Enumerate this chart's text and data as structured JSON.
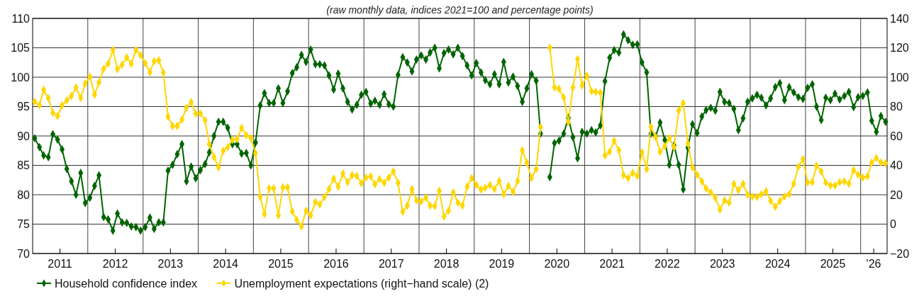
{
  "chart_data": {
    "type": "line",
    "subtitle": "(raw monthly data, indices 2021=100 and percentage points)",
    "x": [
      "2011-01-15",
      "2011-02-15",
      "2011-03-15",
      "2011-04-15",
      "2011-05-15",
      "2011-06-15",
      "2011-07-15",
      "2011-08-15",
      "2011-09-15",
      "2011-10-15",
      "2011-11-15",
      "2011-12-15",
      "2012-01-15",
      "2012-02-15",
      "2012-03-15",
      "2012-04-15",
      "2012-05-15",
      "2012-06-15",
      "2012-07-15",
      "2012-08-15",
      "2012-09-15",
      "2012-10-15",
      "2012-11-15",
      "2012-12-15",
      "2013-01-15",
      "2013-02-15",
      "2013-03-15",
      "2013-04-15",
      "2013-05-15",
      "2013-06-15",
      "2013-07-15",
      "2013-08-15",
      "2013-09-15",
      "2013-10-15",
      "2013-11-15",
      "2013-12-15",
      "2014-01-15",
      "2014-02-15",
      "2014-03-15",
      "2014-04-15",
      "2014-05-15",
      "2014-06-15",
      "2014-07-15",
      "2014-08-15",
      "2014-09-15",
      "2014-10-15",
      "2014-11-15",
      "2014-12-15",
      "2015-01-15",
      "2015-02-15",
      "2015-03-15",
      "2015-04-15",
      "2015-05-15",
      "2015-06-15",
      "2015-07-15",
      "2015-08-15",
      "2015-09-15",
      "2015-10-15",
      "2015-11-15",
      "2015-12-15",
      "2016-01-15",
      "2016-02-15",
      "2016-03-15",
      "2016-04-15",
      "2016-05-15",
      "2016-06-15",
      "2016-07-15",
      "2016-08-15",
      "2016-09-15",
      "2016-10-15",
      "2016-11-15",
      "2016-12-15",
      "2017-01-15",
      "2017-02-15",
      "2017-03-15",
      "2017-04-15",
      "2017-05-15",
      "2017-06-15",
      "2017-07-15",
      "2017-08-15",
      "2017-09-15",
      "2017-10-15",
      "2017-11-15",
      "2017-12-15",
      "2018-01-15",
      "2018-02-15",
      "2018-03-15",
      "2018-04-15",
      "2018-05-15",
      "2018-06-15",
      "2018-07-15",
      "2018-08-15",
      "2018-09-15",
      "2018-10-15",
      "2018-11-15",
      "2018-12-15",
      "2019-01-15",
      "2019-02-15",
      "2019-03-15",
      "2019-04-15",
      "2019-05-15",
      "2019-06-15",
      "2019-07-15",
      "2019-08-15",
      "2019-09-15",
      "2019-10-15",
      "2019-11-15",
      "2019-12-15",
      "2020-01-15",
      "2020-02-15",
      "2020-03-15",
      "2020-04-15",
      "2020-05-15",
      "2020-06-15",
      "2020-07-15",
      "2020-08-15",
      "2020-09-15",
      "2020-10-15",
      "2020-11-15",
      "2020-12-15",
      "2021-01-15",
      "2021-02-15",
      "2021-03-15",
      "2021-04-15",
      "2021-05-15",
      "2021-06-15",
      "2021-07-15",
      "2021-08-15",
      "2021-09-15",
      "2021-10-15",
      "2021-11-15",
      "2021-12-15",
      "2022-01-15",
      "2022-02-15",
      "2022-03-15",
      "2022-04-15",
      "2022-05-15",
      "2022-06-15",
      "2022-07-15",
      "2022-08-15",
      "2022-09-15",
      "2022-10-15",
      "2022-11-15",
      "2022-12-15",
      "2023-01-15",
      "2023-02-15",
      "2023-03-15",
      "2023-04-15",
      "2023-05-15",
      "2023-06-15",
      "2023-07-15",
      "2023-08-15",
      "2023-09-15",
      "2023-10-15",
      "2023-11-15",
      "2023-12-15",
      "2024-01-15",
      "2024-02-15",
      "2024-03-15",
      "2024-04-15",
      "2024-05-15",
      "2024-06-15",
      "2024-07-15",
      "2024-08-15",
      "2024-09-15",
      "2024-10-15",
      "2024-11-15",
      "2024-12-15",
      "2025-01-15",
      "2025-02-15",
      "2025-03-15",
      "2025-04-15",
      "2025-05-15",
      "2025-06-15",
      "2025-07-15",
      "2025-08-15",
      "2025-09-15",
      "2025-10-15",
      "2025-11-15",
      "2025-12-15",
      "2026-01-15",
      "2026-02-15",
      "2026-03-15",
      "2026-04-15",
      "2026-05-15",
      "2026-06-15"
    ],
    "series": [
      {
        "name": "Household confidence index",
        "color": "#006400",
        "values": [
          89.6,
          88.1,
          86.7,
          86.4,
          90.3,
          89.4,
          87.7,
          84.4,
          82.3,
          80.0,
          83.7,
          78.6,
          79.5,
          81.5,
          83.3,
          76.2,
          75.8,
          73.9,
          76.8,
          75.3,
          75.2,
          74.6,
          74.5,
          73.9,
          74.5,
          76.1,
          74.2,
          75.3,
          75.3,
          84.1,
          85.1,
          86.9,
          88.6,
          82.3,
          84.8,
          82.8,
          84.2,
          85.2,
          87.2,
          90.0,
          92.4,
          92.4,
          91.4,
          88.6,
          88.6,
          87.0,
          87.1,
          85.0,
          88.9,
          95.2,
          97.3,
          95.6,
          95.6,
          98.1,
          95.6,
          97.6,
          100.7,
          101.7,
          103.8,
          102.6,
          104.7,
          102.2,
          102.2,
          102.0,
          100.3,
          97.9,
          100.6,
          98.1,
          95.8,
          94.5,
          95.3,
          97.0,
          97.5,
          95.5,
          96.0,
          95.3,
          97.1,
          95.4,
          95.0,
          100.4,
          103.4,
          102.5,
          101.0,
          103.0,
          103.7,
          103.0,
          104.2,
          105.0,
          101.5,
          104.1,
          104.7,
          103.9,
          105.0,
          103.6,
          102.0,
          100.3,
          102.4,
          100.8,
          99.5,
          98.8,
          100.5,
          98.8,
          102.6,
          99.1,
          100.1,
          98.5,
          95.8,
          98.1,
          100.5,
          99.4,
          90.4,
          null,
          83.0,
          88.8,
          89.2,
          90.4,
          93.1,
          89.8,
          86.2,
          90.7,
          90.4,
          91.0,
          90.6,
          91.8,
          99.3,
          103.3,
          104.6,
          104.2,
          107.3,
          106.3,
          105.5,
          105.6,
          102.5,
          100.8,
          90.4,
          89.9,
          92.3,
          89.3,
          85.1,
          88.4,
          85.1,
          80.9,
          88.0,
          92.0,
          90.5,
          93.3,
          94.4,
          94.8,
          94.3,
          97.5,
          95.8,
          95.6,
          94.6,
          91.0,
          93.0,
          95.8,
          96.4,
          97.0,
          96.5,
          95.2,
          96.4,
          98.3,
          99.0,
          96.1,
          98.3,
          97.4,
          96.6,
          96.3,
          98.2,
          98.8,
          95.0,
          92.7,
          96.5,
          96.1,
          97.2,
          96.2,
          96.8,
          97.5,
          94.9,
          96.6,
          96.8,
          97.4,
          92.6,
          90.7,
          93.4,
          92.4
        ]
      },
      {
        "name": "Unemployment expectations (right−hand scale) (2)",
        "color": "#ffd700",
        "axis": "y2",
        "values": [
          83.4,
          80.8,
          91.4,
          85.8,
          75.8,
          73.5,
          80.8,
          84.2,
          87.3,
          93.0,
          85.9,
          95.6,
          100.3,
          88.1,
          96.4,
          105.7,
          109.3,
          118.5,
          105.4,
          108.4,
          113.5,
          109.2,
          118.5,
          115.1,
          109.5,
          103.4,
          110.9,
          111.5,
          103.1,
          73.3,
          66.8,
          66.8,
          71.1,
          79.2,
          83.1,
          75.3,
          75.3,
          70.7,
          54.3,
          45.7,
          38.7,
          49.9,
          52.4,
          57.4,
          57.9,
          65.5,
          60.5,
          58.7,
          48.1,
          18.5,
          6.8,
          24.3,
          24.3,
          6.0,
          25.0,
          25.0,
          8.7,
          2.9,
          -1.5,
          9.1,
          6.0,
          15.1,
          13.3,
          18.5,
          23.9,
          31.0,
          25.5,
          34.4,
          28.6,
          33.3,
          32.8,
          27.8,
          31.7,
          32.5,
          27.1,
          30.6,
          28.1,
          31.7,
          35.9,
          28.1,
          8.4,
          12.6,
          23.9,
          16.1,
          15.4,
          18.0,
          12.6,
          12.3,
          22.7,
          5.2,
          9.1,
          21.6,
          14.6,
          12.6,
          25.5,
          31.3,
          26.6,
          23.6,
          24.7,
          26.6,
          23.9,
          29.4,
          20.4,
          26.0,
          21.9,
          29.4,
          50.4,
          41.9,
          31.3,
          37.5,
          66.0,
          null,
          120.1,
          93.0,
          92.0,
          86.3,
          69.4,
          93.0,
          112.3,
          94.4,
          101.1,
          90.5,
          90.1,
          89.4,
          46.8,
          49.3,
          56.7,
          50.4,
          33.3,
          31.3,
          34.8,
          32.8,
          48.9,
          37.5,
          66.3,
          59.3,
          49.2,
          53.1,
          58.7,
          52.4,
          77.4,
          82.4,
          54.8,
          38.7,
          33.6,
          29.1,
          24.3,
          21.6,
          18.0,
          9.9,
          16.1,
          14.6,
          27.4,
          23.2,
          27.4,
          20.0,
          18.8,
          18.5,
          20.4,
          22.4,
          15.8,
          11.8,
          15.7,
          18.8,
          20.4,
          27.5,
          39.0,
          44.2,
          28.3,
          28.6,
          39.8,
          35.9,
          28.3,
          26.3,
          26.3,
          28.6,
          29.1,
          27.5,
          36.7,
          33.6,
          31.7,
          32.5,
          41.9,
          45.0,
          41.9,
          41.4
        ]
      }
    ],
    "xlim": [
      "2011-01-01",
      "2026-06-25"
    ],
    "xticks": [
      {
        "value": "2011-07-01",
        "label": "2011"
      },
      {
        "value": "2012-01-01",
        "label": null
      },
      {
        "value": "2012-07-01",
        "label": "2012"
      },
      {
        "value": "2013-01-01",
        "label": null
      },
      {
        "value": "2013-07-01",
        "label": "2013"
      },
      {
        "value": "2014-01-01",
        "label": null
      },
      {
        "value": "2014-07-01",
        "label": "2014"
      },
      {
        "value": "2015-01-01",
        "label": null
      },
      {
        "value": "2015-07-01",
        "label": "2015"
      },
      {
        "value": "2016-01-01",
        "label": null
      },
      {
        "value": "2016-07-01",
        "label": "2016"
      },
      {
        "value": "2017-01-01",
        "label": null
      },
      {
        "value": "2017-07-01",
        "label": "2017"
      },
      {
        "value": "2018-01-01",
        "label": null
      },
      {
        "value": "2018-07-01",
        "label": "2018"
      },
      {
        "value": "2019-01-01",
        "label": null
      },
      {
        "value": "2019-07-01",
        "label": "2019"
      },
      {
        "value": "2020-01-01",
        "label": null
      },
      {
        "value": "2020-07-01",
        "label": "2020"
      },
      {
        "value": "2021-01-01",
        "label": null
      },
      {
        "value": "2021-07-01",
        "label": "2021"
      },
      {
        "value": "2022-01-01",
        "label": null
      },
      {
        "value": "2022-07-01",
        "label": "2022"
      },
      {
        "value": "2023-01-01",
        "label": null
      },
      {
        "value": "2023-07-01",
        "label": "2023"
      },
      {
        "value": "2024-01-01",
        "label": null
      },
      {
        "value": "2024-07-01",
        "label": "2024"
      },
      {
        "value": "2025-01-01",
        "label": null
      },
      {
        "value": "2025-07-01",
        "label": "2025"
      },
      {
        "value": "2026-01-01",
        "label": null
      },
      {
        "value": "2026-03-28",
        "label": "'26"
      }
    ],
    "ylim": [
      70,
      110
    ],
    "yticks": [
      70,
      75,
      80,
      85,
      90,
      95,
      100,
      105,
      110
    ],
    "y2lim": [
      -20,
      140
    ],
    "y2ticks": [
      {
        "value": -20,
        "label": "−20"
      },
      0,
      20,
      40,
      60,
      80,
      100,
      120,
      140
    ],
    "grid": true,
    "legend": "bottom",
    "marker": "diamond",
    "line_style": "solid"
  }
}
